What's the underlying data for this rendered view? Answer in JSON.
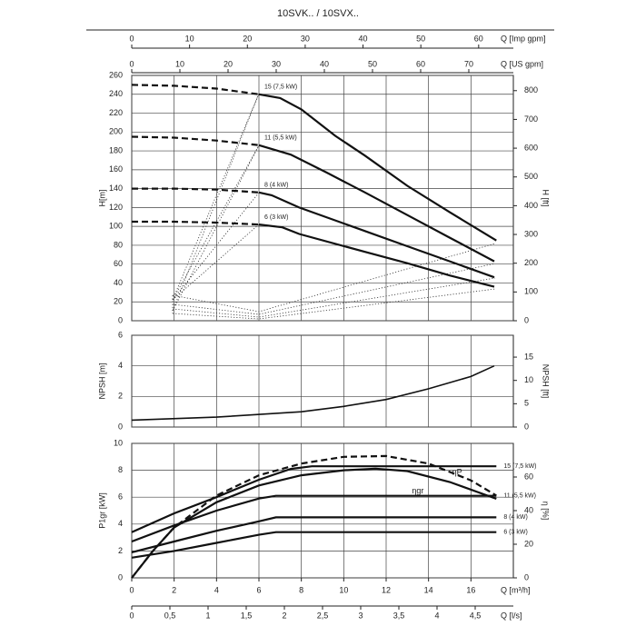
{
  "chart_data": [
    {
      "type": "line",
      "title": "10SVK.. / 10SVX..",
      "xlim": [
        0,
        18
      ],
      "top_axes": [
        {
          "label": "Q [Imp gpm]",
          "xlim": [
            0,
            66
          ],
          "xticks": [
            0,
            10,
            20,
            30,
            40,
            50,
            60
          ]
        },
        {
          "label": "Q [US gpm]",
          "xlim": [
            0,
            79.25
          ],
          "xticks": [
            0,
            10,
            20,
            30,
            40,
            50,
            60,
            70
          ]
        }
      ],
      "ylabel": "H[m]",
      "ylim": [
        0,
        260
      ],
      "yticks": [
        0,
        20,
        40,
        60,
        80,
        100,
        120,
        140,
        160,
        180,
        200,
        220,
        240,
        260
      ],
      "y2label": "H [ft]",
      "y2lim": [
        0,
        853
      ],
      "y2ticks": [
        0,
        100,
        200,
        300,
        400,
        500,
        600,
        700,
        800
      ],
      "series": [
        {
          "name": "15 (7,5 kW)",
          "color": "#111",
          "style": "solid",
          "x": [
            6,
            7,
            8,
            9.6,
            11,
            13,
            15,
            17.2
          ],
          "values": [
            240,
            236,
            224,
            196,
            175,
            143,
            115,
            85
          ]
        },
        {
          "name": "11 (5,5 kW)",
          "color": "#111",
          "style": "solid",
          "x": [
            6,
            7.5,
            9.2,
            11,
            13,
            15,
            17.1
          ],
          "values": [
            186,
            176,
            157,
            136,
            112,
            88,
            63
          ]
        },
        {
          "name": "8 (4 kW)",
          "color": "#111",
          "style": "solid",
          "x": [
            6,
            6.6,
            7.9,
            11,
            13,
            15,
            17.1
          ],
          "values": [
            136,
            133,
            120,
            95,
            79,
            63,
            46
          ]
        },
        {
          "name": "6 (3 kW)",
          "color": "#111",
          "style": "solid",
          "x": [
            6,
            7.1,
            7.9,
            11,
            13,
            15,
            17.1
          ],
          "values": [
            102,
            99,
            92,
            73,
            61,
            48,
            36
          ]
        },
        {
          "color": "#111",
          "style": "dashed",
          "x": [
            0,
            2,
            4,
            6
          ],
          "values": [
            250,
            249,
            246,
            240
          ]
        },
        {
          "color": "#111",
          "style": "dashed",
          "x": [
            0,
            2,
            4,
            6
          ],
          "values": [
            195,
            194,
            191,
            186
          ]
        },
        {
          "color": "#111",
          "style": "dashed",
          "x": [
            0,
            2,
            4,
            6
          ],
          "values": [
            140,
            140,
            139,
            136
          ]
        },
        {
          "color": "#111",
          "style": "dashed",
          "x": [
            0,
            2,
            4,
            6
          ],
          "values": [
            105,
            105,
            104,
            102
          ]
        }
      ]
    },
    {
      "type": "line",
      "xlim": [
        0,
        18
      ],
      "ylabel": "NPSH [m]",
      "ylim": [
        0,
        6
      ],
      "yticks": [
        0,
        2,
        4,
        6
      ],
      "y2label": "NPSH [ft]",
      "y2lim": [
        0,
        19.69
      ],
      "y2ticks": [
        0,
        5,
        10,
        15
      ],
      "series": [
        {
          "color": "#111",
          "style": "solid",
          "x": [
            0,
            4,
            8,
            10,
            12,
            14,
            16,
            17.1
          ],
          "values": [
            0.45,
            0.65,
            1.0,
            1.35,
            1.8,
            2.5,
            3.3,
            4.0
          ]
        }
      ]
    },
    {
      "type": "line",
      "xlim": [
        0,
        18
      ],
      "xlabel": "Q [m³/h]",
      "xticks": [
        0,
        2,
        4,
        6,
        8,
        10,
        12,
        14,
        16
      ],
      "bottom_axes": [
        {
          "label": "Q [l/s]",
          "xlim": [
            0,
            5
          ],
          "xticks": [
            0,
            {
              "value": 0.5,
              "label": "0,5"
            },
            1,
            {
              "value": 1.5,
              "label": "1,5"
            },
            2,
            {
              "value": 2.5,
              "label": "2,5"
            },
            3,
            {
              "value": 3.5,
              "label": "3,5"
            },
            4,
            {
              "value": 4.5,
              "label": "4,5"
            }
          ]
        }
      ],
      "ylabel": "P1gr [kW]",
      "ylim": [
        0,
        10
      ],
      "yticks": [
        0,
        2,
        4,
        6,
        8,
        10
      ],
      "y2label": "η [%]",
      "y2lim": [
        0,
        80
      ],
      "y2ticks": [
        0,
        20,
        40,
        60
      ],
      "series": [
        {
          "name": "15 (7,5 kW)",
          "color": "#111",
          "style": "solid",
          "x": [
            0,
            2,
            4,
            6,
            7.5,
            8.5,
            17.2
          ],
          "values": [
            3.4,
            4.8,
            6.0,
            7.3,
            8.1,
            8.3,
            8.3
          ]
        },
        {
          "name": "11 (5,5 kW)",
          "color": "#111",
          "style": "solid",
          "x": [
            0,
            2,
            4,
            6,
            6.8,
            17.2
          ],
          "values": [
            2.7,
            3.9,
            5.0,
            5.9,
            6.1,
            6.1
          ]
        },
        {
          "name": "8 (4 kW)",
          "color": "#111",
          "style": "solid",
          "x": [
            0,
            2,
            4,
            6,
            6.8,
            17.2
          ],
          "values": [
            1.9,
            2.7,
            3.5,
            4.2,
            4.5,
            4.5
          ]
        },
        {
          "name": "6 (3 kW)",
          "color": "#111",
          "style": "solid",
          "x": [
            0,
            2,
            4,
            6,
            6.8,
            17.2
          ],
          "values": [
            1.5,
            2.0,
            2.6,
            3.2,
            3.4,
            3.4
          ]
        },
        {
          "name": "ηP",
          "color": "#111",
          "style": "dashed",
          "axis": "y2",
          "x": [
            0,
            1,
            2,
            4,
            6,
            8,
            10,
            12,
            14,
            16,
            17.2
          ],
          "values": [
            0,
            16,
            30,
            49,
            61,
            68,
            72,
            72.5,
            68,
            58,
            49
          ]
        },
        {
          "name": "ηgr",
          "color": "#111",
          "style": "solid",
          "axis": "y2",
          "x": [
            0,
            1,
            2,
            4,
            6,
            8,
            10,
            11.5,
            13,
            15,
            17.2
          ],
          "values": [
            0,
            16,
            30,
            45,
            55,
            61,
            64,
            65,
            63.5,
            57,
            47
          ]
        }
      ]
    }
  ]
}
